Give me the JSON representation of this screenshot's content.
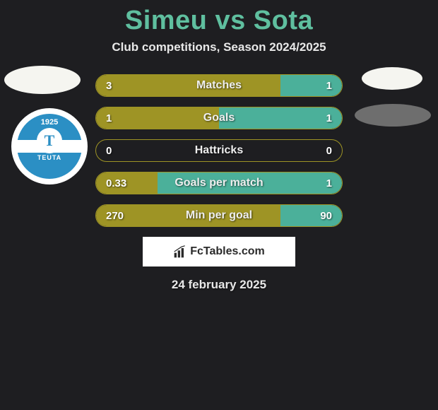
{
  "title": "Simeu vs Sota",
  "subtitle": "Club competitions, Season 2024/2025",
  "date": "24 february 2025",
  "watermark": "FcTables.com",
  "club": {
    "year": "1925",
    "letter": "T",
    "name": "TEUTA"
  },
  "colors": {
    "background": "#1e1e21",
    "title": "#5fbf9f",
    "text": "#e8e8e8",
    "olive": "#9e9425",
    "teal": "#4bb09a",
    "badge_blue": "#2b8fc4"
  },
  "stats": [
    {
      "label": "Matches",
      "left_val": "3",
      "right_val": "1",
      "left_pct": 75,
      "right_pct": 25,
      "left_color": "#9e9425",
      "right_color": "#4bb09a",
      "border_color": "#9e9425"
    },
    {
      "label": "Goals",
      "left_val": "1",
      "right_val": "1",
      "left_pct": 50,
      "right_pct": 50,
      "left_color": "#9e9425",
      "right_color": "#4bb09a",
      "border_color": "#9e9425"
    },
    {
      "label": "Hattricks",
      "left_val": "0",
      "right_val": "0",
      "left_pct": 0,
      "right_pct": 0,
      "left_color": "#9e9425",
      "right_color": "#4bb09a",
      "border_color": "#9e9425"
    },
    {
      "label": "Goals per match",
      "left_val": "0.33",
      "right_val": "1",
      "left_pct": 25,
      "right_pct": 75,
      "left_color": "#9e9425",
      "right_color": "#4bb09a",
      "border_color": "#9e9425"
    },
    {
      "label": "Min per goal",
      "left_val": "270",
      "right_val": "90",
      "left_pct": 75,
      "right_pct": 25,
      "left_color": "#9e9425",
      "right_color": "#4bb09a",
      "border_color": "#9e9425"
    }
  ]
}
